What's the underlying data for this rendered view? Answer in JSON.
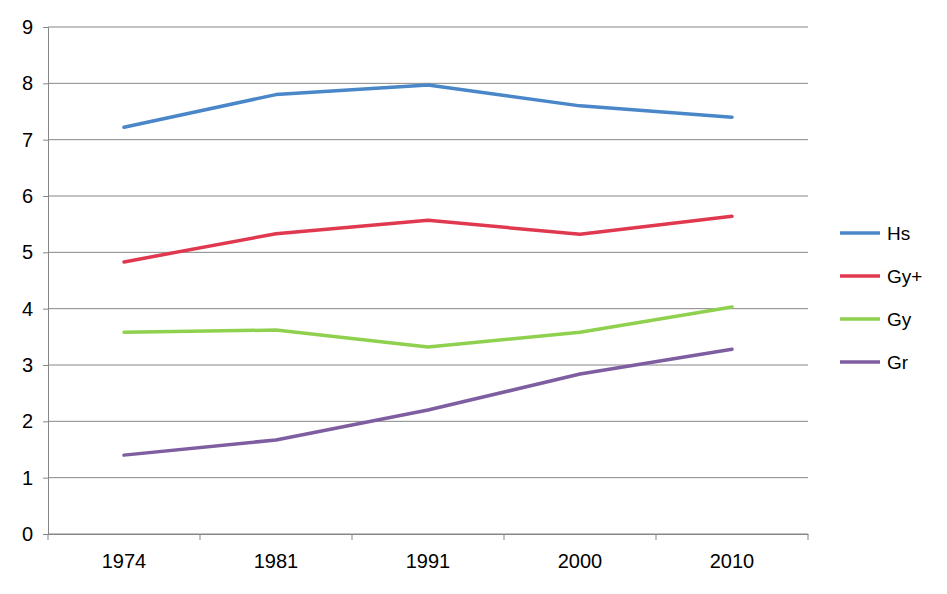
{
  "chart_data": {
    "type": "line",
    "categories": [
      1974,
      1981,
      1991,
      2000,
      2010
    ],
    "series": [
      {
        "name": "Hs",
        "color": "#4a87c9",
        "values": [
          7.22,
          7.8,
          7.97,
          7.6,
          7.4
        ]
      },
      {
        "name": "Gy+",
        "color": "#e0394f",
        "values": [
          4.83,
          5.33,
          5.57,
          5.32,
          5.64
        ]
      },
      {
        "name": "Gy",
        "color": "#8fd14f",
        "values": [
          3.58,
          3.62,
          3.32,
          3.58,
          4.03
        ]
      },
      {
        "name": "Gr",
        "color": "#7e5ea1",
        "values": [
          1.4,
          1.67,
          2.2,
          2.84,
          3.28
        ]
      }
    ],
    "ylim": [
      0,
      9
    ],
    "yticks": [
      0,
      1,
      2,
      3,
      4,
      5,
      6,
      7,
      8,
      9
    ],
    "grid": true,
    "legend": "right"
  }
}
